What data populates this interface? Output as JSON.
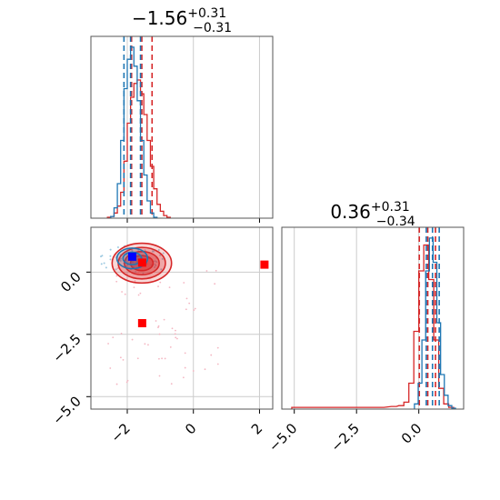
{
  "chart_data": [
    {
      "type": "histogram",
      "panel": "marginal-param-1",
      "title": {
        "median": "−1.56",
        "plus": "+0.31",
        "minus": "−0.31"
      },
      "xlim": [
        -3.1,
        2.4
      ],
      "grid": true,
      "series": [
        {
          "name": "",
          "color": "#d62728",
          "bins_x": [
            -2.55,
            -2.45,
            -2.35,
            -2.25,
            -2.15,
            -2.05,
            -1.95,
            -1.85,
            -1.75,
            -1.65,
            -1.55,
            -1.45,
            -1.35,
            -1.25,
            -1.15,
            -1.05,
            -0.95,
            -0.85,
            -0.75
          ],
          "counts": [
            0.005,
            0.01,
            0.03,
            0.07,
            0.15,
            0.33,
            0.55,
            0.7,
            0.78,
            0.8,
            0.72,
            0.6,
            0.45,
            0.3,
            0.17,
            0.08,
            0.04,
            0.015,
            0.005
          ],
          "quantiles": [
            -1.87,
            -1.56,
            -1.25
          ]
        },
        {
          "name": "",
          "color": "#1f77b4",
          "bins_x": [
            -2.45,
            -2.35,
            -2.25,
            -2.15,
            -2.05,
            -1.95,
            -1.85,
            -1.75,
            -1.65,
            -1.55,
            -1.45,
            -1.35,
            -1.25,
            -1.15
          ],
          "counts": [
            0.01,
            0.06,
            0.2,
            0.45,
            0.75,
            0.92,
            0.99,
            0.88,
            0.68,
            0.45,
            0.25,
            0.1,
            0.03,
            0.005
          ],
          "quantiles": [
            -2.1,
            -1.9,
            -1.6
          ]
        }
      ]
    },
    {
      "type": "scatter",
      "panel": "joint-param-1-vs-param-2",
      "xlim": [
        -3.1,
        2.4
      ],
      "ylim": [
        -5.5,
        1.8
      ],
      "xticks": [
        "−2",
        "0",
        "2"
      ],
      "yticks": [
        "0.0",
        "−2.5",
        "−5.0"
      ],
      "grid": true,
      "markers": [
        {
          "x": -1.85,
          "y": 0.62,
          "color": "#0000ff"
        },
        {
          "x": -1.55,
          "y": 0.38,
          "color": "#ff0000"
        },
        {
          "x": 2.15,
          "y": 0.3,
          "color": "#ff0000"
        },
        {
          "x": -1.55,
          "y": -2.05,
          "color": "#ff0000"
        }
      ],
      "contours": [
        {
          "color": "#d62728",
          "center": [
            -1.56,
            0.36
          ],
          "levels": [
            0.55,
            0.85,
            1.15,
            1.45
          ]
        },
        {
          "color": "#1f77b4",
          "center": [
            -1.85,
            0.55
          ],
          "levels": [
            0.45,
            0.75
          ]
        }
      ]
    },
    {
      "type": "histogram",
      "panel": "marginal-param-2",
      "title": {
        "median": "0.36",
        "plus": "+0.31",
        "minus": "−0.34"
      },
      "xlim": [
        -5.5,
        1.8
      ],
      "xticks": [
        "−5.0",
        "−2.5",
        "0.0"
      ],
      "grid": true,
      "series": [
        {
          "name": "",
          "color": "#d62728",
          "bins_x": [
            -5.0,
            -4.5,
            -4.0,
            -3.5,
            -3.0,
            -2.5,
            -2.0,
            -1.5,
            -1.0,
            -0.7,
            -0.5,
            -0.3,
            -0.1,
            0.1,
            0.3,
            0.5,
            0.7,
            0.9,
            1.1,
            1.3
          ],
          "counts": [
            0.01,
            0.01,
            0.01,
            0.01,
            0.01,
            0.01,
            0.01,
            0.01,
            0.015,
            0.02,
            0.04,
            0.15,
            0.45,
            0.8,
            0.95,
            0.75,
            0.4,
            0.12,
            0.03,
            0.01
          ],
          "quantiles": [
            0.02,
            0.36,
            0.67
          ]
        },
        {
          "name": "",
          "color": "#1f77b4",
          "bins_x": [
            -0.1,
            0.05,
            0.2,
            0.35,
            0.5,
            0.65,
            0.8,
            0.95,
            1.1,
            1.25,
            1.4
          ],
          "counts": [
            0.03,
            0.15,
            0.4,
            0.8,
            0.99,
            0.85,
            0.5,
            0.2,
            0.08,
            0.02,
            0.005
          ],
          "quantiles": [
            0.3,
            0.55,
            0.82
          ]
        }
      ]
    }
  ]
}
